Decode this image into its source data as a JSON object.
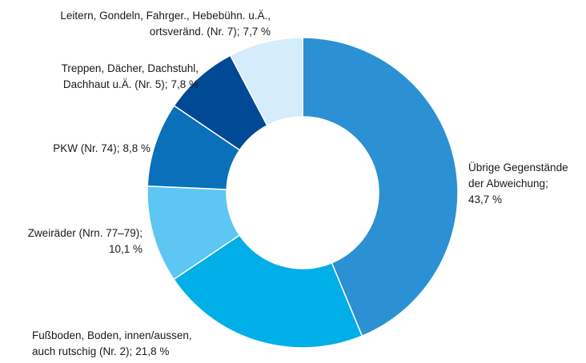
{
  "chart_data": {
    "type": "donut",
    "categories": [
      "Übrige Gegenstände\nder Abweichung;",
      "Fußboden, Boden, innen/aussen,\nauch rutschig (Nr. 2);",
      "Zweiräder (Nrn. 77–79);",
      "PKW (Nr. 74);",
      "Treppen, Dächer, Dachstuhl,\nDachhaut u.Ä. (Nr. 5);",
      "Leitern, Gondeln, Fahrger., Hebebühn. u.Ä.,\nortsveränd. (Nr. 7);"
    ],
    "values": [
      43.7,
      21.8,
      10.1,
      8.8,
      7.8,
      7.7
    ],
    "value_labels": [
      "43,7 %",
      "21,8 %",
      "10,1 %",
      "8,8 %",
      "7,8 %",
      "7,7 %"
    ],
    "colors": [
      "#2b90d4",
      "#00aee8",
      "#5ec6f2",
      "#0a70ba",
      "#004995",
      "#d4ecfb"
    ]
  }
}
